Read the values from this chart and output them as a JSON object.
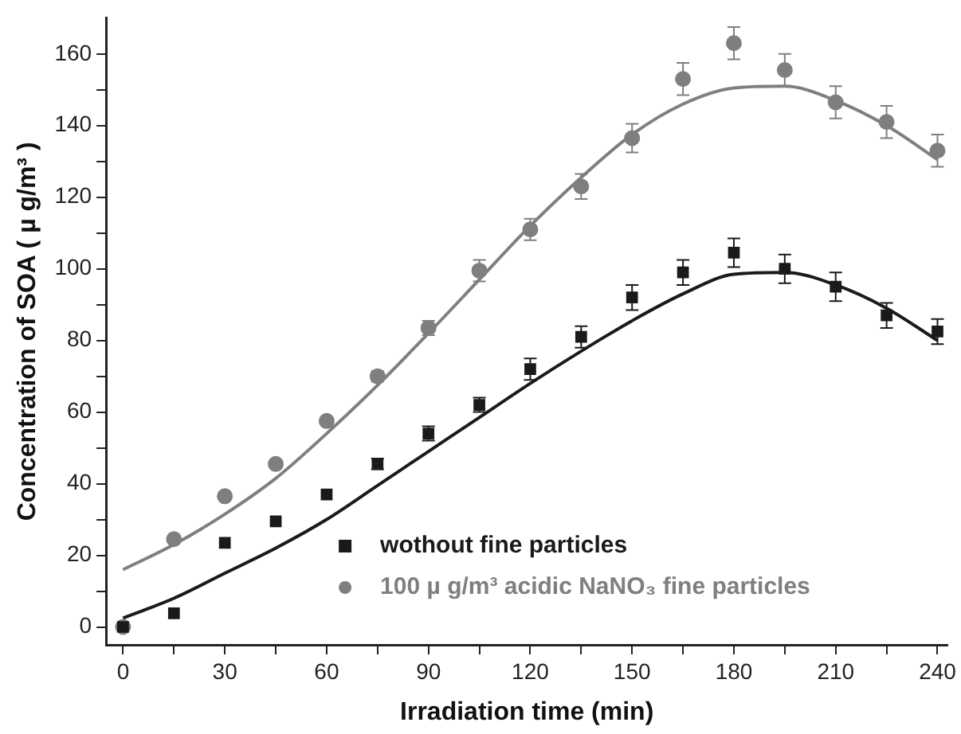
{
  "chart_data": {
    "type": "scatter",
    "xlabel": "Irradiation time (min)",
    "ylabel": "Concentration of SOA ( µ g/m³ )",
    "xlim": [
      -5,
      243
    ],
    "ylim": [
      -5,
      170
    ],
    "xticks": [
      0,
      {
        "value": 15,
        "label": null
      },
      30,
      {
        "value": 45,
        "label": null
      },
      60,
      {
        "value": 75,
        "label": null
      },
      90,
      {
        "value": 105,
        "label": null
      },
      120,
      {
        "value": 135,
        "label": null
      },
      150,
      {
        "value": 165,
        "label": null
      },
      180,
      {
        "value": 195,
        "label": null
      },
      210,
      {
        "value": 225,
        "label": null
      },
      240
    ],
    "yticks": [
      0,
      {
        "value": 10,
        "label": null
      },
      20,
      {
        "value": 30,
        "label": null
      },
      40,
      {
        "value": 50,
        "label": null
      },
      60,
      {
        "value": 70,
        "label": null
      },
      80,
      {
        "value": 90,
        "label": null
      },
      100,
      {
        "value": 110,
        "label": null
      },
      120,
      {
        "value": 130,
        "label": null
      },
      140,
      {
        "value": 150,
        "label": null
      },
      160
    ],
    "legend": "bottom",
    "grid": false,
    "series": [
      {
        "name": "wothout fine particles",
        "marker": "square",
        "color": "#1a1a1a",
        "x": [
          0,
          15,
          30,
          45,
          60,
          75,
          90,
          105,
          120,
          135,
          150,
          165,
          180,
          195,
          210,
          225,
          240
        ],
        "values": [
          0,
          3.8,
          23.5,
          29.5,
          37,
          45.5,
          54,
          62,
          72,
          81,
          92,
          99,
          104.5,
          100,
          95,
          87,
          82.5
        ],
        "errors": [
          null,
          null,
          null,
          null,
          null,
          1.5,
          2,
          2,
          3,
          3,
          3.5,
          3.5,
          4,
          4,
          4,
          3.5,
          3.5
        ]
      },
      {
        "name": "100 µ g/m³ acidic NaNO₃ fine particles",
        "marker": "circle",
        "color": "#7f7f7f",
        "x": [
          0,
          15,
          30,
          45,
          60,
          75,
          90,
          105,
          120,
          135,
          150,
          165,
          180,
          195,
          210,
          225,
          240
        ],
        "values": [
          0,
          24.5,
          36.5,
          45.5,
          57.5,
          70,
          83.5,
          99.5,
          111,
          123,
          136.5,
          153,
          163,
          155.5,
          146.5,
          141,
          133
        ],
        "errors": [
          null,
          null,
          1,
          null,
          1,
          1.5,
          2,
          3,
          3,
          3.5,
          4,
          4.5,
          4.5,
          4.5,
          4.5,
          4.5,
          4.5
        ]
      },
      {
        "type": "line",
        "marker": "none",
        "color": "#1a1a1a",
        "x": [
          0,
          15,
          30,
          45,
          60,
          75,
          90,
          105,
          120,
          135,
          150,
          165,
          180,
          195,
          210,
          225,
          240
        ],
        "values": [
          2.5,
          8,
          15,
          22,
          30,
          39.5,
          49,
          58.5,
          68,
          77,
          85.5,
          93,
          98.5,
          99,
          95.5,
          89,
          80
        ]
      },
      {
        "type": "line",
        "marker": "none",
        "color": "#7f7f7f",
        "x": [
          0,
          15,
          30,
          45,
          60,
          75,
          90,
          105,
          120,
          135,
          150,
          165,
          180,
          195,
          210,
          225,
          240
        ],
        "values": [
          16,
          23,
          31.5,
          41.5,
          54,
          67.5,
          82,
          97,
          112,
          125.5,
          137.5,
          146,
          150.5,
          151,
          147,
          140,
          130.5
        ]
      }
    ]
  }
}
